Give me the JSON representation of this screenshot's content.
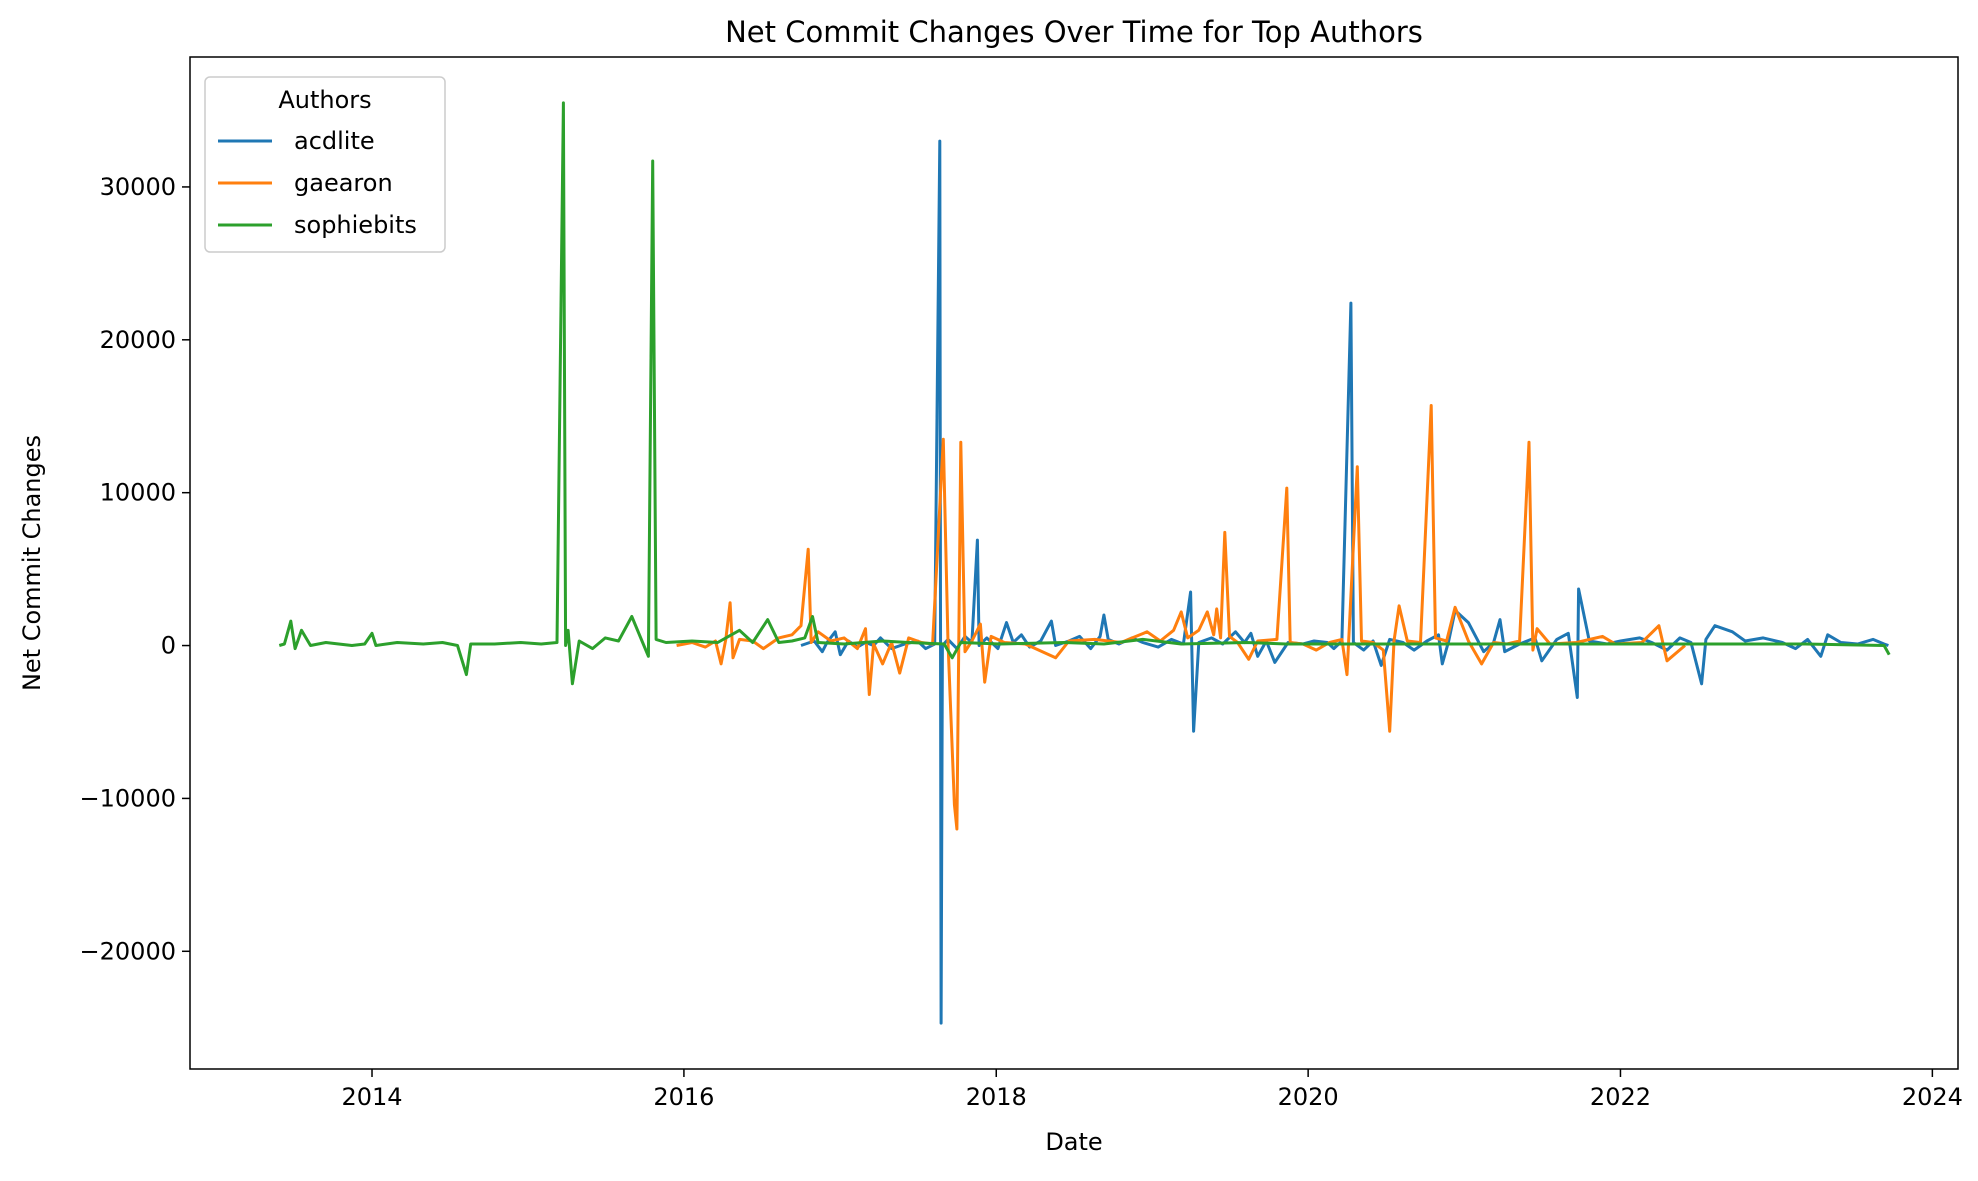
{
  "chart_data": {
    "type": "line",
    "title": "Net Commit Changes Over Time for Top Authors",
    "xlabel": "Date",
    "ylabel": "Net Commit Changes",
    "xlim": [
      "2012-11-01",
      "2024-03-01"
    ],
    "ylim": [
      -27700,
      38500
    ],
    "xticks": [
      "2014",
      "2016",
      "2018",
      "2020",
      "2022",
      "2024"
    ],
    "yticks": [
      -20000,
      -10000,
      0,
      10000,
      20000,
      30000
    ],
    "ytick_labels": [
      "−20000",
      "−10000",
      "0",
      "10000",
      "20000",
      "30000"
    ],
    "grid": false,
    "legend": {
      "title": "Authors",
      "position": "top-left"
    },
    "series": [
      {
        "name": "acdlite",
        "color": "#1f77b4",
        "points": [
          [
            "2016-10-01",
            0
          ],
          [
            "2016-11-01",
            300
          ],
          [
            "2016-11-20",
            -400
          ],
          [
            "2016-12-01",
            200
          ],
          [
            "2016-12-20",
            900
          ],
          [
            "2017-01-01",
            -600
          ],
          [
            "2017-01-20",
            300
          ],
          [
            "2017-02-10",
            -100
          ],
          [
            "2017-03-01",
            200
          ],
          [
            "2017-03-20",
            0
          ],
          [
            "2017-04-05",
            500
          ],
          [
            "2017-05-01",
            -200
          ],
          [
            "2017-06-01",
            100
          ],
          [
            "2017-07-01",
            300
          ],
          [
            "2017-07-20",
            -200
          ],
          [
            "2017-08-10",
            100
          ],
          [
            "2017-08-22",
            33000
          ],
          [
            "2017-08-25",
            -24700
          ],
          [
            "2017-08-28",
            0
          ],
          [
            "2017-09-10",
            400
          ],
          [
            "2017-10-01",
            -200
          ],
          [
            "2017-10-20",
            600
          ],
          [
            "2017-11-05",
            200
          ],
          [
            "2017-11-18",
            6900
          ],
          [
            "2017-11-22",
            0
          ],
          [
            "2017-12-10",
            500
          ],
          [
            "2018-01-05",
            -200
          ],
          [
            "2018-01-25",
            1500
          ],
          [
            "2018-02-10",
            200
          ],
          [
            "2018-03-01",
            700
          ],
          [
            "2018-03-20",
            -100
          ],
          [
            "2018-04-15",
            300
          ],
          [
            "2018-05-10",
            1600
          ],
          [
            "2018-05-20",
            0
          ],
          [
            "2018-06-20",
            300
          ],
          [
            "2018-07-15",
            600
          ],
          [
            "2018-08-10",
            -200
          ],
          [
            "2018-09-01",
            600
          ],
          [
            "2018-09-10",
            2000
          ],
          [
            "2018-09-20",
            400
          ],
          [
            "2018-10-15",
            100
          ],
          [
            "2018-11-15",
            500
          ],
          [
            "2018-12-10",
            200
          ],
          [
            "2019-01-15",
            -100
          ],
          [
            "2019-02-15",
            400
          ],
          [
            "2019-03-15",
            100
          ],
          [
            "2019-04-01",
            3500
          ],
          [
            "2019-04-08",
            -5600
          ],
          [
            "2019-04-20",
            200
          ],
          [
            "2019-05-20",
            500
          ],
          [
            "2019-06-15",
            100
          ],
          [
            "2019-07-15",
            900
          ],
          [
            "2019-08-05",
            200
          ],
          [
            "2019-08-20",
            800
          ],
          [
            "2019-09-05",
            -700
          ],
          [
            "2019-09-25",
            300
          ],
          [
            "2019-10-15",
            -1100
          ],
          [
            "2019-11-15",
            200
          ],
          [
            "2019-12-20",
            100
          ],
          [
            "2020-01-15",
            300
          ],
          [
            "2020-02-15",
            200
          ],
          [
            "2020-03-01",
            -200
          ],
          [
            "2020-03-20",
            300
          ],
          [
            "2020-04-10",
            22400
          ],
          [
            "2020-04-16",
            200
          ],
          [
            "2020-05-10",
            -300
          ],
          [
            "2020-06-01",
            300
          ],
          [
            "2020-06-20",
            -1300
          ],
          [
            "2020-07-10",
            400
          ],
          [
            "2020-08-10",
            200
          ],
          [
            "2020-09-05",
            -300
          ],
          [
            "2020-10-05",
            300
          ],
          [
            "2020-11-01",
            700
          ],
          [
            "2020-11-10",
            -1200
          ],
          [
            "2020-11-25",
            300
          ],
          [
            "2020-12-10",
            2300
          ],
          [
            "2021-01-10",
            1500
          ],
          [
            "2021-02-15",
            -400
          ],
          [
            "2021-03-10",
            200
          ],
          [
            "2021-03-25",
            1700
          ],
          [
            "2021-04-05",
            -400
          ],
          [
            "2021-05-10",
            100
          ],
          [
            "2021-06-15",
            500
          ],
          [
            "2021-07-01",
            -1000
          ],
          [
            "2021-08-05",
            400
          ],
          [
            "2021-09-01",
            800
          ],
          [
            "2021-09-22",
            -3400
          ],
          [
            "2021-09-25",
            3700
          ],
          [
            "2021-10-20",
            300
          ],
          [
            "2021-12-01",
            100
          ],
          [
            "2022-01-01",
            300
          ],
          [
            "2022-02-15",
            500
          ],
          [
            "2022-03-15",
            200
          ],
          [
            "2022-04-20",
            -300
          ],
          [
            "2022-05-20",
            500
          ],
          [
            "2022-06-15",
            200
          ],
          [
            "2022-07-10",
            -2500
          ],
          [
            "2022-07-20",
            400
          ],
          [
            "2022-08-10",
            1300
          ],
          [
            "2022-09-20",
            900
          ],
          [
            "2022-10-20",
            300
          ],
          [
            "2022-12-01",
            500
          ],
          [
            "2023-01-15",
            200
          ],
          [
            "2023-02-15",
            -200
          ],
          [
            "2023-03-15",
            400
          ],
          [
            "2023-04-15",
            -700
          ],
          [
            "2023-05-01",
            700
          ],
          [
            "2023-06-01",
            200
          ],
          [
            "2023-07-10",
            100
          ],
          [
            "2023-08-15",
            400
          ],
          [
            "2023-09-10",
            100
          ],
          [
            "2023-09-20",
            0
          ]
        ]
      },
      {
        "name": "gaearon",
        "color": "#ff7f0e",
        "points": [
          [
            "2015-12-15",
            0
          ],
          [
            "2016-01-20",
            200
          ],
          [
            "2016-02-20",
            -100
          ],
          [
            "2016-03-15",
            300
          ],
          [
            "2016-03-28",
            -1200
          ],
          [
            "2016-04-08",
            400
          ],
          [
            "2016-04-18",
            2800
          ],
          [
            "2016-04-25",
            -800
          ],
          [
            "2016-05-10",
            400
          ],
          [
            "2016-06-10",
            300
          ],
          [
            "2016-07-05",
            -200
          ],
          [
            "2016-08-10",
            500
          ],
          [
            "2016-09-10",
            700
          ],
          [
            "2016-10-01",
            1300
          ],
          [
            "2016-10-18",
            6300
          ],
          [
            "2016-10-25",
            200
          ],
          [
            "2016-11-10",
            900
          ],
          [
            "2016-12-10",
            300
          ],
          [
            "2017-01-10",
            500
          ],
          [
            "2017-02-10",
            -200
          ],
          [
            "2017-03-01",
            1100
          ],
          [
            "2017-03-10",
            -3200
          ],
          [
            "2017-03-20",
            100
          ],
          [
            "2017-04-10",
            -1200
          ],
          [
            "2017-05-01",
            200
          ],
          [
            "2017-05-20",
            -1800
          ],
          [
            "2017-06-10",
            500
          ],
          [
            "2017-07-10",
            200
          ],
          [
            "2017-08-05",
            100
          ],
          [
            "2017-08-30",
            13500
          ],
          [
            "2017-09-10",
            200
          ],
          [
            "2017-09-25",
            -10400
          ],
          [
            "2017-10-01",
            -12000
          ],
          [
            "2017-10-10",
            13300
          ],
          [
            "2017-10-20",
            -400
          ],
          [
            "2017-11-05",
            300
          ],
          [
            "2017-11-25",
            1400
          ],
          [
            "2017-12-05",
            -2400
          ],
          [
            "2017-12-20",
            600
          ],
          [
            "2018-01-20",
            200
          ],
          [
            "2018-03-10",
            100
          ],
          [
            "2018-05-20",
            -800
          ],
          [
            "2018-06-20",
            300
          ],
          [
            "2018-08-20",
            400
          ],
          [
            "2018-10-20",
            200
          ],
          [
            "2018-12-20",
            900
          ],
          [
            "2019-01-20",
            300
          ],
          [
            "2019-02-20",
            1000
          ],
          [
            "2019-03-10",
            2200
          ],
          [
            "2019-03-25",
            500
          ],
          [
            "2019-04-20",
            1000
          ],
          [
            "2019-05-10",
            2200
          ],
          [
            "2019-05-25",
            700
          ],
          [
            "2019-06-01",
            2400
          ],
          [
            "2019-06-10",
            500
          ],
          [
            "2019-06-20",
            7400
          ],
          [
            "2019-07-01",
            600
          ],
          [
            "2019-07-20",
            200
          ],
          [
            "2019-08-15",
            -900
          ],
          [
            "2019-09-05",
            300
          ],
          [
            "2019-10-20",
            400
          ],
          [
            "2019-11-12",
            10300
          ],
          [
            "2019-11-20",
            200
          ],
          [
            "2019-12-20",
            100
          ],
          [
            "2020-01-20",
            -300
          ],
          [
            "2020-02-20",
            200
          ],
          [
            "2020-03-20",
            400
          ],
          [
            "2020-04-01",
            -1900
          ],
          [
            "2020-04-25",
            11700
          ],
          [
            "2020-05-05",
            300
          ],
          [
            "2020-06-01",
            200
          ],
          [
            "2020-06-25",
            -300
          ],
          [
            "2020-07-10",
            -5600
          ],
          [
            "2020-07-20",
            300
          ],
          [
            "2020-08-01",
            2600
          ],
          [
            "2020-08-20",
            300
          ],
          [
            "2020-09-20",
            200
          ],
          [
            "2020-10-15",
            15700
          ],
          [
            "2020-10-25",
            500
          ],
          [
            "2020-11-20",
            300
          ],
          [
            "2020-12-10",
            2500
          ],
          [
            "2021-01-10",
            300
          ],
          [
            "2021-02-10",
            -1200
          ],
          [
            "2021-03-10",
            200
          ],
          [
            "2021-04-10",
            100
          ],
          [
            "2021-05-10",
            300
          ],
          [
            "2021-06-01",
            13300
          ],
          [
            "2021-06-10",
            -300
          ],
          [
            "2021-06-20",
            1100
          ],
          [
            "2021-07-20",
            100
          ],
          [
            "2021-09-20",
            200
          ],
          [
            "2021-11-20",
            600
          ],
          [
            "2021-12-20",
            100
          ],
          [
            "2022-02-20",
            200
          ],
          [
            "2022-04-01",
            1300
          ],
          [
            "2022-04-20",
            -1000
          ],
          [
            "2022-06-01",
            0
          ]
        ]
      },
      {
        "name": "sophiebits",
        "color": "#2ca02c",
        "points": [
          [
            "2013-05-29",
            0
          ],
          [
            "2013-06-10",
            100
          ],
          [
            "2013-06-25",
            1600
          ],
          [
            "2013-07-05",
            -200
          ],
          [
            "2013-07-20",
            1000
          ],
          [
            "2013-08-10",
            0
          ],
          [
            "2013-09-15",
            200
          ],
          [
            "2013-10-15",
            100
          ],
          [
            "2013-11-15",
            0
          ],
          [
            "2013-12-15",
            100
          ],
          [
            "2014-01-01",
            800
          ],
          [
            "2014-01-10",
            0
          ],
          [
            "2014-03-01",
            200
          ],
          [
            "2014-05-01",
            100
          ],
          [
            "2014-06-15",
            200
          ],
          [
            "2014-07-20",
            0
          ],
          [
            "2014-08-10",
            -1900
          ],
          [
            "2014-08-20",
            100
          ],
          [
            "2014-10-15",
            100
          ],
          [
            "2014-12-15",
            200
          ],
          [
            "2015-02-01",
            100
          ],
          [
            "2015-03-10",
            200
          ],
          [
            "2015-03-25",
            35500
          ],
          [
            "2015-03-30",
            0
          ],
          [
            "2015-04-05",
            1000
          ],
          [
            "2015-04-15",
            -2500
          ],
          [
            "2015-05-01",
            300
          ],
          [
            "2015-06-01",
            -200
          ],
          [
            "2015-07-01",
            500
          ],
          [
            "2015-08-01",
            300
          ],
          [
            "2015-09-01",
            1900
          ],
          [
            "2015-09-25",
            300
          ],
          [
            "2015-10-10",
            -700
          ],
          [
            "2015-10-20",
            31700
          ],
          [
            "2015-10-28",
            400
          ],
          [
            "2015-11-20",
            200
          ],
          [
            "2016-01-20",
            300
          ],
          [
            "2016-03-20",
            200
          ],
          [
            "2016-05-10",
            1000
          ],
          [
            "2016-06-10",
            200
          ],
          [
            "2016-07-15",
            1700
          ],
          [
            "2016-08-10",
            200
          ],
          [
            "2016-09-10",
            300
          ],
          [
            "2016-10-10",
            500
          ],
          [
            "2016-10-28",
            1900
          ],
          [
            "2016-11-10",
            200
          ],
          [
            "2017-01-10",
            100
          ],
          [
            "2017-04-10",
            300
          ],
          [
            "2017-06-10",
            200
          ],
          [
            "2017-09-01",
            100
          ],
          [
            "2017-09-20",
            -800
          ],
          [
            "2017-10-10",
            200
          ],
          [
            "2018-01-10",
            100
          ],
          [
            "2018-06-10",
            200
          ],
          [
            "2018-09-10",
            100
          ],
          [
            "2018-12-10",
            400
          ],
          [
            "2019-03-10",
            100
          ],
          [
            "2019-08-10",
            200
          ],
          [
            "2019-11-10",
            100
          ],
          [
            "2020-03-10",
            100
          ],
          [
            "2020-09-10",
            100
          ],
          [
            "2021-03-10",
            100
          ],
          [
            "2021-09-10",
            100
          ],
          [
            "2022-03-10",
            100
          ],
          [
            "2022-09-10",
            100
          ],
          [
            "2023-03-10",
            100
          ],
          [
            "2023-09-10",
            0
          ],
          [
            "2023-09-22",
            -600
          ]
        ]
      }
    ]
  }
}
